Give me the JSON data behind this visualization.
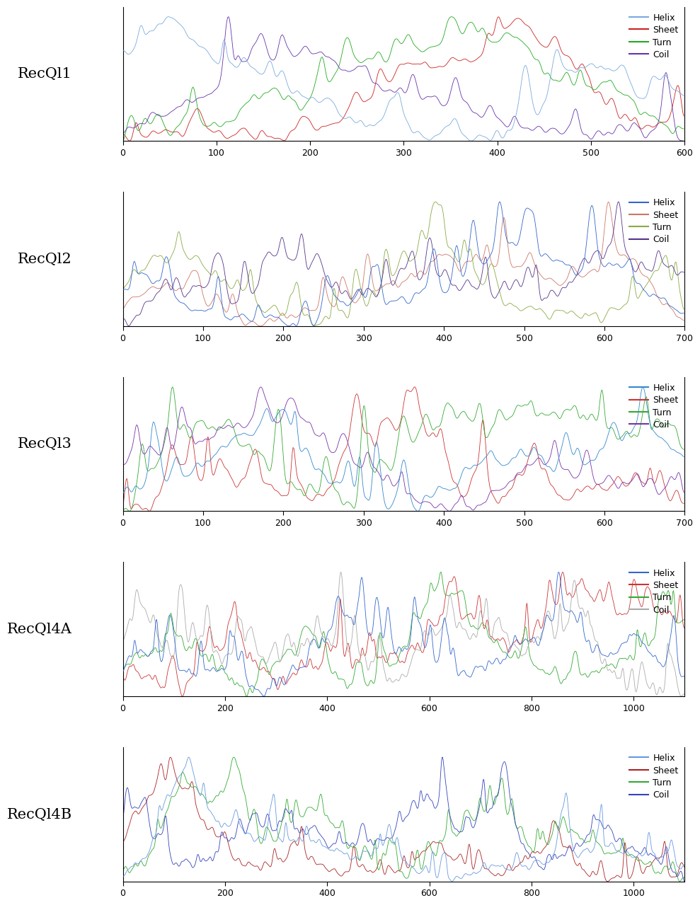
{
  "panels": [
    {
      "label": "RecQl1",
      "x_max": 600,
      "x_ticks": [
        0,
        100,
        200,
        300,
        400,
        500,
        600
      ],
      "helix_color": "#7aaadd",
      "sheet_color": "#cc2222",
      "turn_color": "#22aa22",
      "coil_color": "#6633aa",
      "seed_helix": 101,
      "seed_sheet": 102,
      "seed_turn": 103,
      "seed_coil": 104
    },
    {
      "label": "RecQl2",
      "x_max": 700,
      "x_ticks": [
        0,
        100,
        200,
        300,
        400,
        500,
        600,
        700
      ],
      "helix_color": "#3366cc",
      "sheet_color": "#cc7766",
      "turn_color": "#88aa44",
      "coil_color": "#553388",
      "seed_helix": 201,
      "seed_sheet": 202,
      "seed_turn": 203,
      "seed_coil": 204
    },
    {
      "label": "RecQl3",
      "x_max": 700,
      "x_ticks": [
        0,
        100,
        200,
        300,
        400,
        500,
        600,
        700
      ],
      "helix_color": "#3388cc",
      "sheet_color": "#cc3333",
      "turn_color": "#33aa33",
      "coil_color": "#7733aa",
      "seed_helix": 301,
      "seed_sheet": 302,
      "seed_turn": 303,
      "seed_coil": 304
    },
    {
      "label": "RecQl4A",
      "x_max": 1100,
      "x_ticks": [
        0,
        200,
        400,
        600,
        800,
        1000
      ],
      "helix_color": "#3366cc",
      "sheet_color": "#cc3333",
      "turn_color": "#33aa33",
      "coil_color": "#aaaaaa",
      "seed_helix": 401,
      "seed_sheet": 402,
      "seed_turn": 403,
      "seed_coil": 404
    },
    {
      "label": "RecQl4B",
      "x_max": 1100,
      "x_ticks": [
        0,
        200,
        400,
        600,
        800,
        1000
      ],
      "helix_color": "#6699dd",
      "sheet_color": "#aa2222",
      "turn_color": "#33aa33",
      "coil_color": "#3344bb",
      "seed_helix": 501,
      "seed_sheet": 502,
      "seed_turn": 503,
      "seed_coil": 504
    }
  ],
  "bg_color": "#ffffff",
  "linewidth": 0.6,
  "font_size_label": 15,
  "font_size_legend": 9,
  "font_size_tick": 9,
  "legend_labels": [
    "Helix",
    "Sheet",
    "Turn",
    "Coil"
  ]
}
